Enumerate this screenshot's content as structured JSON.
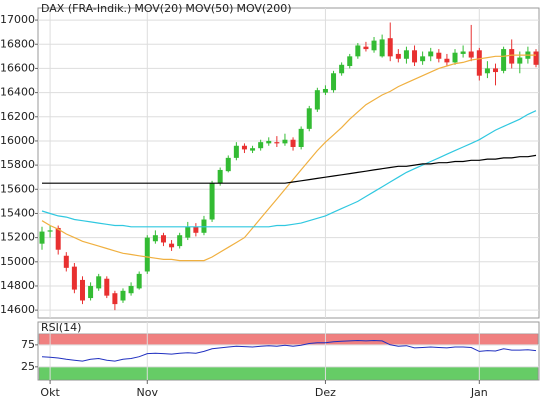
{
  "chart_data": [
    {
      "type": "candlestick",
      "categories": [
        null,
        "Okt",
        null,
        null,
        null,
        null,
        null,
        null,
        null,
        null,
        null,
        null,
        null,
        "Nov",
        null,
        null,
        null,
        null,
        null,
        null,
        null,
        null,
        null,
        null,
        null,
        null,
        null,
        null,
        null,
        null,
        null,
        null,
        null,
        null,
        null,
        "Dez",
        null,
        null,
        null,
        null,
        null,
        null,
        null,
        null,
        null,
        null,
        null,
        null,
        null,
        null,
        null,
        null,
        null,
        null,
        "Jan",
        null,
        null,
        null,
        null,
        null,
        null,
        null
      ],
      "ylim": [
        14535,
        17100
      ],
      "yticks": [
        14600,
        14800,
        15000,
        15200,
        15400,
        15600,
        15800,
        16000,
        16200,
        16400,
        16600,
        16800,
        17000
      ],
      "grid": true,
      "up_color": "#33bb33",
      "down_color": "#e83030",
      "series": [
        {
          "name": "DAX (FRA-Indik.)",
          "color": "#e03030",
          "open": [
            15150,
            15250,
            15280,
            15050,
            14960,
            14850,
            14700,
            14780,
            14860,
            14740,
            14680,
            14740,
            14780,
            14920,
            15170,
            15220,
            15150,
            15130,
            15200,
            15290,
            15240,
            15350,
            15650,
            15750,
            15860,
            15960,
            15920,
            15940,
            15980,
            15990,
            15980,
            16010,
            15950,
            16100,
            16260,
            16400,
            16420,
            16560,
            16620,
            16700,
            16780,
            16750,
            16700,
            16850,
            16720,
            16680,
            16750,
            16660,
            16700,
            16730,
            16680,
            16650,
            16720,
            16740,
            16750,
            16560,
            16600,
            16580,
            16760,
            16640,
            16680,
            16740
          ],
          "high": [
            15290,
            15300,
            15300,
            15080,
            14990,
            14880,
            14830,
            14900,
            14880,
            14760,
            14780,
            14830,
            14920,
            15220,
            15260,
            15240,
            15180,
            15240,
            15330,
            15320,
            15380,
            15670,
            15780,
            15880,
            15990,
            15980,
            15960,
            16010,
            16030,
            16040,
            16060,
            16030,
            16120,
            16290,
            16440,
            16460,
            16580,
            16650,
            16720,
            16810,
            16820,
            16860,
            16880,
            16980,
            16760,
            16780,
            16790,
            16740,
            16770,
            16760,
            16720,
            16760,
            16790,
            16960,
            16770,
            16660,
            16640,
            16780,
            16840,
            16740,
            16780,
            16760
          ],
          "low": [
            15100,
            15200,
            15060,
            14920,
            14740,
            14650,
            14680,
            14760,
            14700,
            14600,
            14660,
            14720,
            14770,
            14900,
            15150,
            15130,
            15090,
            15110,
            15180,
            15210,
            15220,
            15330,
            15630,
            15740,
            15840,
            15900,
            15900,
            15920,
            15960,
            15950,
            15960,
            15920,
            15930,
            16080,
            16240,
            16380,
            16400,
            16540,
            16600,
            16680,
            16740,
            16730,
            16690,
            16660,
            16650,
            16640,
            16620,
            16630,
            16660,
            16650,
            16620,
            16630,
            16690,
            16660,
            16500,
            16520,
            16460,
            16560,
            16600,
            16560,
            16640,
            16610
          ],
          "close": [
            15250,
            15260,
            15100,
            14950,
            14770,
            14680,
            14800,
            14880,
            14720,
            14650,
            14760,
            14800,
            14900,
            15200,
            15220,
            15160,
            15120,
            15220,
            15290,
            15240,
            15350,
            15650,
            15760,
            15860,
            15960,
            15930,
            15940,
            15990,
            16000,
            15980,
            16010,
            15950,
            16100,
            16270,
            16420,
            16430,
            16560,
            16630,
            16700,
            16790,
            16760,
            16830,
            16840,
            16700,
            16680,
            16750,
            16650,
            16700,
            16740,
            16680,
            16650,
            16730,
            16740,
            16690,
            16540,
            16600,
            16570,
            16760,
            16640,
            16690,
            16740,
            16630
          ]
        },
        {
          "name": "MOV(20)",
          "color": "#f0b040",
          "values": [
            15340,
            15300,
            15270,
            15230,
            15200,
            15170,
            15150,
            15130,
            15110,
            15090,
            15070,
            15060,
            15050,
            15040,
            15030,
            15020,
            15020,
            15010,
            15010,
            15010,
            15010,
            15040,
            15080,
            15120,
            15160,
            15200,
            15280,
            15360,
            15440,
            15520,
            15600,
            15680,
            15760,
            15840,
            15920,
            15990,
            16050,
            16110,
            16180,
            16240,
            16300,
            16340,
            16380,
            16410,
            16450,
            16480,
            16510,
            16540,
            16570,
            16600,
            16620,
            16640,
            16650,
            16670,
            16680,
            16690,
            16700,
            16700,
            16710,
            16710,
            16710,
            16710
          ]
        },
        {
          "name": "MOV(50)",
          "color": "#30c8e0",
          "values": [
            15420,
            15400,
            15380,
            15370,
            15350,
            15340,
            15330,
            15320,
            15310,
            15300,
            15300,
            15290,
            15290,
            15290,
            15290,
            15290,
            15290,
            15290,
            15290,
            15290,
            15290,
            15290,
            15290,
            15290,
            15290,
            15290,
            15290,
            15290,
            15290,
            15300,
            15300,
            15310,
            15320,
            15340,
            15360,
            15380,
            15410,
            15440,
            15470,
            15500,
            15540,
            15580,
            15620,
            15660,
            15700,
            15740,
            15770,
            15800,
            15830,
            15860,
            15890,
            15920,
            15950,
            15980,
            16010,
            16050,
            16090,
            16120,
            16150,
            16180,
            16220,
            16250
          ]
        },
        {
          "name": "MOV(200)",
          "color": "#000000",
          "values": [
            15650,
            15650,
            15650,
            15650,
            15650,
            15650,
            15650,
            15650,
            15650,
            15650,
            15650,
            15650,
            15650,
            15650,
            15650,
            15650,
            15650,
            15650,
            15650,
            15650,
            15650,
            15650,
            15650,
            15650,
            15650,
            15650,
            15650,
            15650,
            15650,
            15650,
            15650,
            15660,
            15670,
            15680,
            15690,
            15700,
            15710,
            15720,
            15730,
            15740,
            15750,
            15760,
            15770,
            15780,
            15790,
            15790,
            15800,
            15810,
            15810,
            15820,
            15820,
            15830,
            15830,
            15840,
            15840,
            15850,
            15850,
            15860,
            15860,
            15870,
            15870,
            15880
          ]
        }
      ]
    },
    {
      "type": "line",
      "title": "RSI(14)",
      "ylim": [
        -5,
        127
      ],
      "yticks": [
        25,
        75
      ],
      "bands": [
        {
          "from": 75,
          "to": 100,
          "color": "#f08080"
        },
        {
          "from": -5,
          "to": 25,
          "color": "#66cc66"
        }
      ],
      "series": [
        {
          "name": "RSI(14)",
          "color": "#2030c0",
          "values": [
            48,
            47,
            45,
            42,
            40,
            38,
            42,
            44,
            40,
            38,
            42,
            44,
            48,
            55,
            56,
            55,
            54,
            56,
            57,
            56,
            60,
            66,
            68,
            70,
            72,
            71,
            70,
            72,
            73,
            72,
            74,
            72,
            74,
            78,
            80,
            80,
            82,
            83,
            84,
            85,
            84,
            85,
            84,
            75,
            72,
            73,
            68,
            69,
            70,
            69,
            68,
            70,
            70,
            69,
            60,
            62,
            61,
            66,
            63,
            63,
            64,
            62
          ]
        }
      ]
    }
  ]
}
